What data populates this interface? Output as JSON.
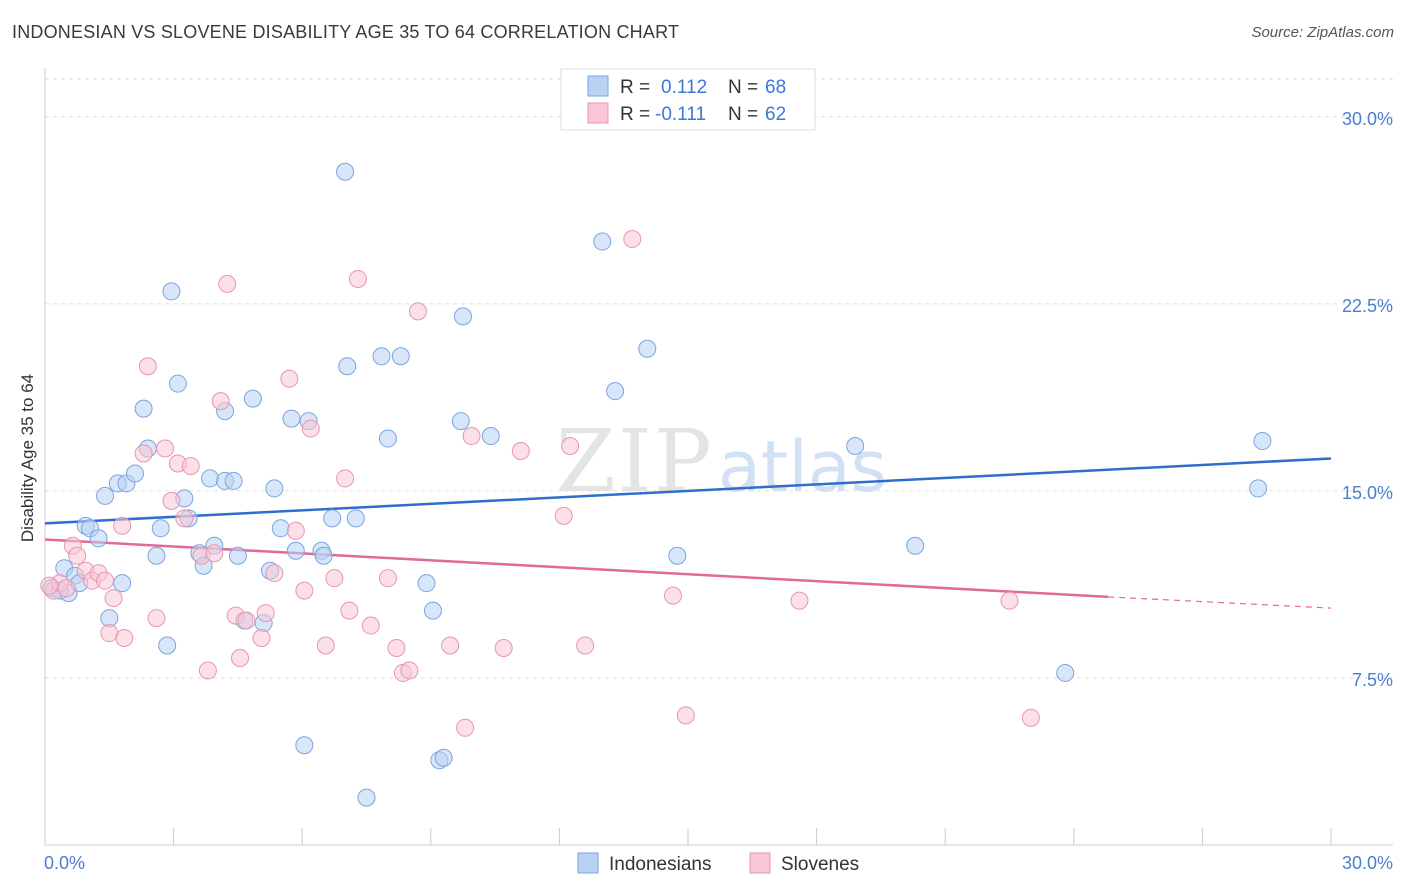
{
  "header": {
    "title": "INDONESIAN VS SLOVENE DISABILITY AGE 35 TO 64 CORRELATION CHART",
    "source": "Source: ZipAtlas.com"
  },
  "legend": {
    "r_label": "R =",
    "n_label": "N =",
    "series": [
      {
        "name": "Indonesians",
        "r": "0.112",
        "n": "68"
      },
      {
        "name": "Slovenes",
        "r": "-0.111",
        "n": "62"
      }
    ]
  },
  "watermark": {
    "zip": "ZIP",
    "atlas": "atlas"
  },
  "colors": {
    "indonesians_fill": "#b8d2f4",
    "indonesians_stroke": "#7aa5e0",
    "indonesians_line": "#2f6ecb",
    "slovenes_fill": "#f8c6d6",
    "slovenes_stroke": "#e995b0",
    "slovenes_line": "#e06b97",
    "axis_label": "#4a7fd0",
    "grid": "#dddddd"
  },
  "chart_data": {
    "type": "scatter",
    "title": "INDONESIAN VS SLOVENE DISABILITY AGE 35 TO 64 CORRELATION CHART",
    "xlabel": "",
    "ylabel": "Disability Age 35 to 64",
    "xlim": [
      0,
      30
    ],
    "ylim": [
      0.8,
      32.2
    ],
    "x_tick_labels": [
      "0.0%",
      "30.0%"
    ],
    "y_ticks": [
      7.5,
      15.0,
      22.5,
      30.0
    ],
    "y_tick_labels": [
      "7.5%",
      "15.0%",
      "22.5%",
      "30.0%"
    ],
    "grid": true,
    "series": [
      {
        "name": "Indonesians",
        "r": 0.112,
        "n": 68,
        "trend": {
          "x0": 0,
          "y0": 13.7,
          "x1": 30,
          "y1": 16.3
        },
        "points": [
          [
            0.15,
            11.1
          ],
          [
            0.35,
            11.0
          ],
          [
            0.45,
            11.9
          ],
          [
            0.55,
            10.9
          ],
          [
            0.7,
            11.6
          ],
          [
            0.8,
            11.3
          ],
          [
            0.95,
            13.6
          ],
          [
            1.05,
            13.5
          ],
          [
            1.25,
            13.1
          ],
          [
            1.4,
            14.8
          ],
          [
            1.5,
            9.9
          ],
          [
            1.7,
            15.3
          ],
          [
            1.8,
            11.3
          ],
          [
            1.9,
            15.3
          ],
          [
            2.1,
            15.7
          ],
          [
            2.3,
            18.3
          ],
          [
            2.4,
            16.7
          ],
          [
            2.6,
            12.4
          ],
          [
            2.7,
            13.5
          ],
          [
            2.85,
            8.8
          ],
          [
            2.95,
            23.0
          ],
          [
            3.1,
            19.3
          ],
          [
            3.25,
            14.7
          ],
          [
            3.35,
            13.9
          ],
          [
            3.6,
            12.5
          ],
          [
            3.7,
            12.0
          ],
          [
            3.85,
            15.5
          ],
          [
            3.95,
            12.8
          ],
          [
            4.2,
            18.2
          ],
          [
            4.2,
            15.4
          ],
          [
            4.4,
            15.4
          ],
          [
            4.5,
            12.4
          ],
          [
            4.65,
            9.8
          ],
          [
            4.85,
            18.7
          ],
          [
            5.1,
            9.7
          ],
          [
            5.25,
            11.8
          ],
          [
            5.35,
            15.1
          ],
          [
            5.5,
            13.5
          ],
          [
            5.75,
            17.9
          ],
          [
            5.85,
            12.6
          ],
          [
            6.05,
            4.8
          ],
          [
            6.15,
            17.8
          ],
          [
            6.45,
            12.6
          ],
          [
            6.5,
            12.4
          ],
          [
            6.7,
            13.9
          ],
          [
            7.0,
            27.8
          ],
          [
            7.05,
            20.0
          ],
          [
            7.25,
            13.9
          ],
          [
            7.5,
            2.7
          ],
          [
            7.85,
            20.4
          ],
          [
            8.0,
            17.1
          ],
          [
            8.3,
            20.4
          ],
          [
            8.9,
            11.3
          ],
          [
            9.05,
            10.2
          ],
          [
            9.2,
            4.2
          ],
          [
            9.3,
            4.3
          ],
          [
            9.75,
            22.0
          ],
          [
            9.7,
            17.8
          ],
          [
            10.4,
            17.2
          ],
          [
            13.0,
            25.0
          ],
          [
            13.3,
            19.0
          ],
          [
            14.05,
            20.7
          ],
          [
            14.75,
            12.4
          ],
          [
            18.9,
            16.8
          ],
          [
            20.3,
            12.8
          ],
          [
            23.8,
            7.7
          ],
          [
            28.3,
            15.1
          ],
          [
            28.4,
            17.0
          ]
        ]
      },
      {
        "name": "Slovenes",
        "r": -0.111,
        "n": 62,
        "trend": {
          "x0": 0,
          "y0": 13.05,
          "x1": 24.8,
          "y1": 10.75,
          "dash_x1": 30,
          "dash_y1": 10.3
        },
        "points": [
          [
            0.2,
            11.0
          ],
          [
            0.35,
            11.3
          ],
          [
            0.5,
            11.1
          ],
          [
            0.65,
            12.8
          ],
          [
            0.75,
            12.4
          ],
          [
            0.95,
            11.8
          ],
          [
            1.1,
            11.4
          ],
          [
            1.25,
            11.7
          ],
          [
            1.4,
            11.4
          ],
          [
            1.5,
            9.3
          ],
          [
            1.6,
            10.7
          ],
          [
            1.8,
            13.6
          ],
          [
            1.85,
            9.1
          ],
          [
            2.3,
            16.5
          ],
          [
            2.4,
            20.0
          ],
          [
            2.6,
            9.9
          ],
          [
            2.8,
            16.7
          ],
          [
            2.95,
            14.6
          ],
          [
            3.1,
            16.1
          ],
          [
            3.25,
            13.9
          ],
          [
            3.4,
            16.0
          ],
          [
            3.65,
            12.4
          ],
          [
            3.8,
            7.8
          ],
          [
            3.95,
            12.5
          ],
          [
            4.1,
            18.6
          ],
          [
            4.25,
            23.3
          ],
          [
            4.45,
            10.0
          ],
          [
            4.55,
            8.3
          ],
          [
            4.7,
            9.8
          ],
          [
            5.05,
            9.1
          ],
          [
            5.15,
            10.1
          ],
          [
            5.35,
            11.7
          ],
          [
            5.7,
            19.5
          ],
          [
            5.85,
            13.4
          ],
          [
            6.05,
            11.0
          ],
          [
            6.2,
            17.5
          ],
          [
            6.55,
            8.8
          ],
          [
            6.75,
            11.5
          ],
          [
            7.0,
            15.5
          ],
          [
            7.1,
            10.2
          ],
          [
            7.3,
            23.5
          ],
          [
            7.6,
            9.6
          ],
          [
            8.0,
            11.5
          ],
          [
            8.2,
            8.7
          ],
          [
            8.35,
            7.7
          ],
          [
            8.5,
            7.8
          ],
          [
            8.7,
            22.2
          ],
          [
            9.45,
            8.8
          ],
          [
            9.8,
            5.5
          ],
          [
            9.95,
            17.2
          ],
          [
            10.7,
            8.7
          ],
          [
            11.1,
            16.6
          ],
          [
            12.1,
            14.0
          ],
          [
            12.25,
            16.8
          ],
          [
            12.6,
            8.8
          ],
          [
            13.7,
            25.1
          ],
          [
            14.65,
            10.8
          ],
          [
            14.95,
            6.0
          ],
          [
            17.6,
            10.6
          ],
          [
            22.5,
            10.6
          ],
          [
            23.0,
            5.9
          ],
          [
            0.1,
            11.2
          ]
        ]
      }
    ]
  }
}
